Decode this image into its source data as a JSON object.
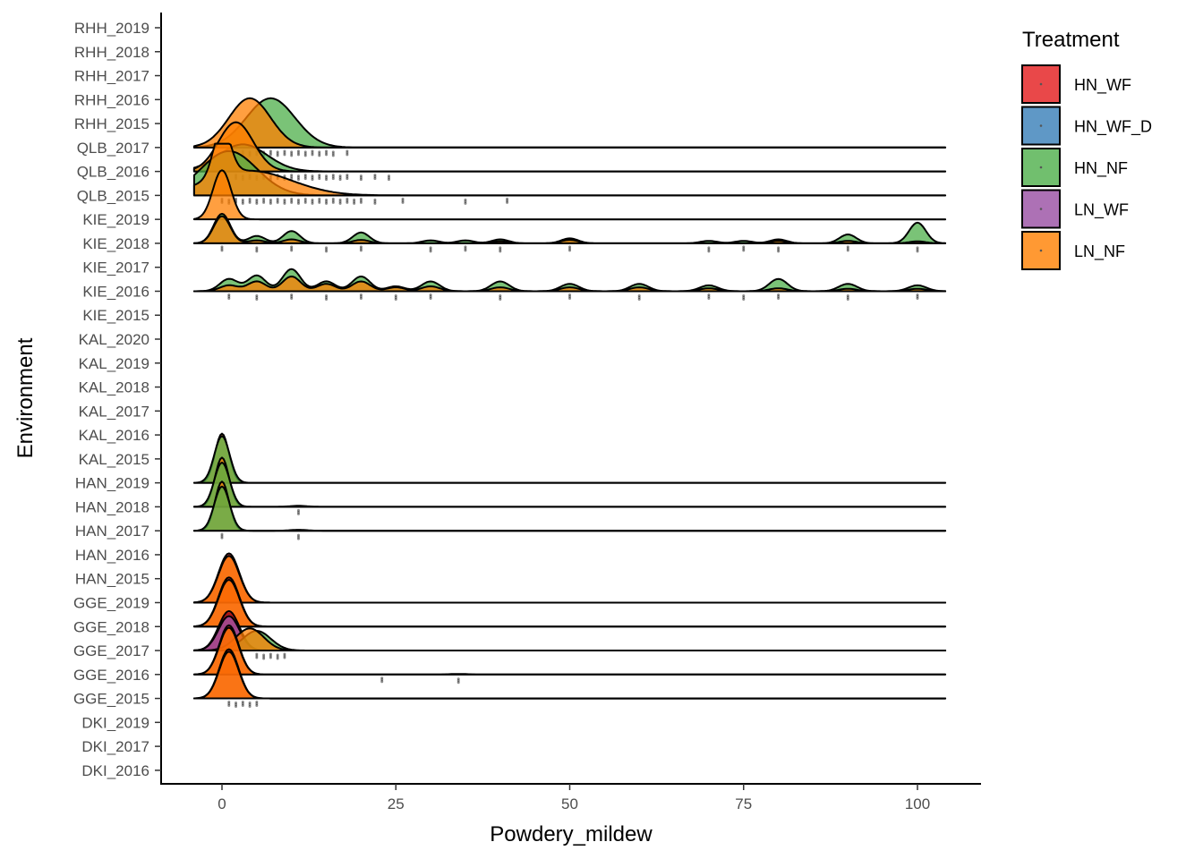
{
  "chart_data": {
    "type": "ridgeline",
    "xlabel": "Powdery_mildew",
    "ylabel": "Environment",
    "xlim": [
      -4,
      104
    ],
    "x_ticks": [
      0,
      25,
      50,
      75,
      100
    ],
    "environments": [
      "RHH_2019",
      "RHH_2018",
      "RHH_2017",
      "RHH_2016",
      "RHH_2015",
      "QLB_2017",
      "QLB_2016",
      "QLB_2015",
      "KIE_2019",
      "KIE_2018",
      "KIE_2017",
      "KIE_2016",
      "KIE_2015",
      "KAL_2020",
      "KAL_2019",
      "KAL_2018",
      "KAL_2017",
      "KAL_2016",
      "KAL_2015",
      "HAN_2019",
      "HAN_2018",
      "HAN_2017",
      "HAN_2016",
      "HAN_2015",
      "GGE_2019",
      "GGE_2018",
      "GGE_2017",
      "GGE_2016",
      "GGE_2015",
      "DKI_2019",
      "DKI_2017",
      "DKI_2016"
    ],
    "legend": {
      "title": "Treatment",
      "position": "right",
      "items": [
        {
          "name": "HN_WF",
          "color": "#E41A1C"
        },
        {
          "name": "HN_WF_D",
          "color": "#377EB8"
        },
        {
          "name": "HN_NF",
          "color": "#4DAF4A"
        },
        {
          "name": "LN_WF",
          "color": "#984EA3"
        },
        {
          "name": "LN_NF",
          "color": "#FF7F00"
        }
      ]
    },
    "ridges": [
      {
        "env": "QLB_2017",
        "dots": [
          3,
          4,
          5,
          6,
          7,
          8,
          9,
          10,
          11,
          12,
          13,
          14,
          15,
          16,
          18
        ],
        "series": [
          {
            "treatment": "HN_NF",
            "peaks": [
              [
                7,
                1.0,
                3.5
              ]
            ]
          },
          {
            "treatment": "LN_NF",
            "peaks": [
              [
                4,
                1.0,
                3.0
              ]
            ]
          }
        ]
      },
      {
        "env": "QLB_2016",
        "dots": [
          2,
          3,
          4,
          5,
          6,
          7,
          8,
          9,
          10,
          11,
          12,
          13,
          14,
          15,
          16,
          17,
          18,
          20,
          22,
          24
        ],
        "series": [
          {
            "treatment": "HN_NF",
            "peaks": [
              [
                3,
                0.55,
                3.5
              ]
            ]
          },
          {
            "treatment": "LN_NF",
            "peaks": [
              [
                2,
                1.0,
                2.5
              ]
            ]
          }
        ]
      },
      {
        "env": "QLB_2015",
        "dots": [
          0,
          1,
          2,
          3,
          4,
          5,
          6,
          7,
          8,
          9,
          10,
          11,
          12,
          13,
          14,
          15,
          16,
          17,
          18,
          19,
          20,
          22,
          26,
          35,
          41
        ],
        "series": [
          {
            "treatment": "HN_NF",
            "peaks": [
              [
                1,
                0.9,
                4.0
              ]
            ]
          },
          {
            "treatment": "LN_NF",
            "peaks": [
              [
                0,
                1.0,
                1.2
              ],
              [
                4,
                0.5,
                6.0
              ]
            ]
          }
        ]
      },
      {
        "env": "KIE_2019",
        "dots": [],
        "series": [
          {
            "treatment": "LN_NF",
            "peaks": [
              [
                0,
                1.0,
                1.3
              ]
            ]
          }
        ]
      },
      {
        "env": "KIE_2018",
        "dots": [
          0,
          5,
          10,
          15,
          20,
          30,
          35,
          40,
          50,
          70,
          75,
          80,
          90,
          100
        ],
        "series": [
          {
            "treatment": "HN_NF",
            "peaks": [
              [
                0,
                0.6,
                1.2
              ],
              [
                5,
                0.15,
                1.2
              ],
              [
                10,
                0.25,
                1.2
              ],
              [
                20,
                0.22,
                1.2
              ],
              [
                30,
                0.06,
                1.2
              ],
              [
                35,
                0.06,
                1.2
              ],
              [
                40,
                0.08,
                1.2
              ],
              [
                50,
                0.1,
                1.2
              ],
              [
                70,
                0.05,
                1.2
              ],
              [
                75,
                0.05,
                1.2
              ],
              [
                80,
                0.08,
                1.2
              ],
              [
                90,
                0.18,
                1.2
              ],
              [
                100,
                0.42,
                1.2
              ]
            ]
          },
          {
            "treatment": "LN_NF",
            "peaks": [
              [
                0,
                0.55,
                1.2
              ],
              [
                5,
                0.06,
                1.2
              ],
              [
                10,
                0.08,
                1.2
              ],
              [
                20,
                0.07,
                1.2
              ],
              [
                40,
                0.04,
                1.2
              ],
              [
                50,
                0.07,
                1.2
              ],
              [
                80,
                0.05,
                1.2
              ],
              [
                90,
                0.05,
                1.2
              ],
              [
                100,
                0.04,
                1.2
              ]
            ]
          }
        ]
      },
      {
        "env": "KIE_2016",
        "dots": [
          1,
          5,
          10,
          15,
          20,
          25,
          30,
          40,
          50,
          60,
          70,
          75,
          80,
          90,
          100
        ],
        "series": [
          {
            "treatment": "HN_NF",
            "peaks": [
              [
                1,
                0.25,
                1.3
              ],
              [
                5,
                0.32,
                1.3
              ],
              [
                10,
                0.45,
                1.3
              ],
              [
                15,
                0.2,
                1.3
              ],
              [
                20,
                0.3,
                1.3
              ],
              [
                25,
                0.1,
                1.3
              ],
              [
                30,
                0.2,
                1.3
              ],
              [
                40,
                0.2,
                1.3
              ],
              [
                50,
                0.15,
                1.3
              ],
              [
                60,
                0.15,
                1.3
              ],
              [
                70,
                0.12,
                1.3
              ],
              [
                80,
                0.25,
                1.3
              ],
              [
                90,
                0.15,
                1.3
              ],
              [
                100,
                0.12,
                1.3
              ]
            ]
          },
          {
            "treatment": "LN_NF",
            "peaks": [
              [
                1,
                0.12,
                1.3
              ],
              [
                5,
                0.2,
                1.3
              ],
              [
                10,
                0.3,
                1.3
              ],
              [
                15,
                0.15,
                1.3
              ],
              [
                20,
                0.2,
                1.3
              ],
              [
                25,
                0.08,
                1.3
              ],
              [
                30,
                0.1,
                1.3
              ],
              [
                40,
                0.08,
                1.3
              ],
              [
                50,
                0.08,
                1.3
              ],
              [
                60,
                0.08,
                1.3
              ],
              [
                70,
                0.06,
                1.3
              ],
              [
                80,
                0.06,
                1.3
              ],
              [
                90,
                0.05,
                1.3
              ],
              [
                100,
                0.05,
                1.3
              ]
            ]
          }
        ]
      },
      {
        "env": "HAN_2019",
        "dots": [],
        "series": [
          {
            "treatment": "LN_NF",
            "peaks": [
              [
                0,
                1.0,
                1.0
              ]
            ]
          },
          {
            "treatment": "HN_NF",
            "peaks": [
              [
                0,
                0.95,
                1.1
              ]
            ]
          }
        ]
      },
      {
        "env": "HAN_2018",
        "dots": [
          11
        ],
        "series": [
          {
            "treatment": "LN_NF",
            "peaks": [
              [
                0,
                1.0,
                1.0
              ],
              [
                11,
                0.02,
                1.2
              ]
            ]
          },
          {
            "treatment": "HN_NF",
            "peaks": [
              [
                0,
                0.9,
                1.1
              ]
            ]
          }
        ]
      },
      {
        "env": "HAN_2017",
        "dots": [
          0,
          11
        ],
        "series": [
          {
            "treatment": "LN_NF",
            "peaks": [
              [
                0,
                1.0,
                1.0
              ],
              [
                11,
                0.02,
                1.2
              ]
            ]
          },
          {
            "treatment": "HN_NF",
            "peaks": [
              [
                0,
                0.9,
                1.1
              ]
            ]
          }
        ]
      },
      {
        "env": "GGE_2019",
        "dots": [],
        "series": [
          {
            "treatment": "HN_WF",
            "peaks": [
              [
                1,
                1.0,
                1.5
              ]
            ]
          },
          {
            "treatment": "LN_NF",
            "peaks": [
              [
                1,
                0.95,
                1.5
              ]
            ]
          }
        ]
      },
      {
        "env": "GGE_2018",
        "dots": [],
        "series": [
          {
            "treatment": "HN_WF",
            "peaks": [
              [
                1,
                1.0,
                1.5
              ]
            ]
          },
          {
            "treatment": "LN_NF",
            "peaks": [
              [
                1,
                0.95,
                1.5
              ]
            ]
          }
        ]
      },
      {
        "env": "GGE_2017",
        "dots": [
          5,
          6,
          7,
          8,
          9
        ],
        "series": [
          {
            "treatment": "HN_WF_D",
            "peaks": [
              [
                1,
                0.75,
                1.5
              ]
            ]
          },
          {
            "treatment": "HN_WF",
            "peaks": [
              [
                1,
                0.8,
                1.5
              ]
            ]
          },
          {
            "treatment": "LN_WF",
            "peaks": [
              [
                1,
                0.7,
                1.5
              ]
            ]
          },
          {
            "treatment": "HN_NF",
            "peaks": [
              [
                5,
                0.4,
                2.0
              ]
            ]
          },
          {
            "treatment": "LN_NF",
            "peaks": [
              [
                4,
                0.45,
                2.0
              ]
            ]
          }
        ]
      },
      {
        "env": "GGE_2016",
        "dots": [
          23,
          34
        ],
        "series": [
          {
            "treatment": "HN_WF",
            "peaks": [
              [
                1,
                1.0,
                1.4
              ],
              [
                34,
                0.01,
                1.5
              ]
            ]
          },
          {
            "treatment": "LN_NF",
            "peaks": [
              [
                1,
                0.95,
                1.4
              ]
            ]
          }
        ]
      },
      {
        "env": "GGE_2015",
        "dots": [
          1,
          2,
          3,
          4,
          5
        ],
        "series": [
          {
            "treatment": "HN_WF",
            "peaks": [
              [
                1,
                1.0,
                1.4
              ]
            ]
          },
          {
            "treatment": "LN_NF",
            "peaks": [
              [
                1,
                0.95,
                1.4
              ]
            ]
          }
        ]
      }
    ]
  }
}
